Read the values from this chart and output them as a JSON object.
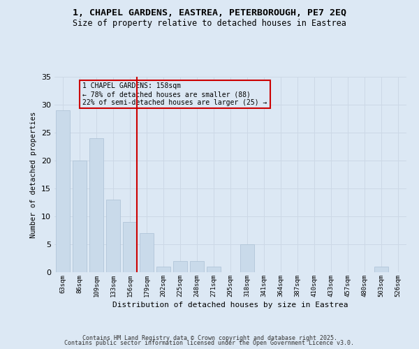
{
  "title_line1": "1, CHAPEL GARDENS, EASTREA, PETERBOROUGH, PE7 2EQ",
  "title_line2": "Size of property relative to detached houses in Eastrea",
  "xlabel": "Distribution of detached houses by size in Eastrea",
  "ylabel": "Number of detached properties",
  "categories": [
    "63sqm",
    "86sqm",
    "109sqm",
    "133sqm",
    "156sqm",
    "179sqm",
    "202sqm",
    "225sqm",
    "248sqm",
    "271sqm",
    "295sqm",
    "318sqm",
    "341sqm",
    "364sqm",
    "387sqm",
    "410sqm",
    "433sqm",
    "457sqm",
    "480sqm",
    "503sqm",
    "526sqm"
  ],
  "values": [
    29,
    20,
    24,
    13,
    9,
    7,
    1,
    2,
    2,
    1,
    0,
    5,
    0,
    0,
    0,
    0,
    0,
    0,
    0,
    1,
    0
  ],
  "bar_color": "#c9daea",
  "bar_edge_color": "#aac0d5",
  "grid_color": "#ccd8e6",
  "background_color": "#dce8f4",
  "vline_x_index": 4,
  "vline_color": "#cc0000",
  "annotation_text": "1 CHAPEL GARDENS: 158sqm\n← 78% of detached houses are smaller (88)\n22% of semi-detached houses are larger (25) →",
  "annotation_box_color": "#cc0000",
  "ylim": [
    0,
    35
  ],
  "yticks": [
    0,
    5,
    10,
    15,
    20,
    25,
    30,
    35
  ],
  "footnote_line1": "Contains HM Land Registry data © Crown copyright and database right 2025.",
  "footnote_line2": "Contains public sector information licensed under the Open Government Licence v3.0."
}
